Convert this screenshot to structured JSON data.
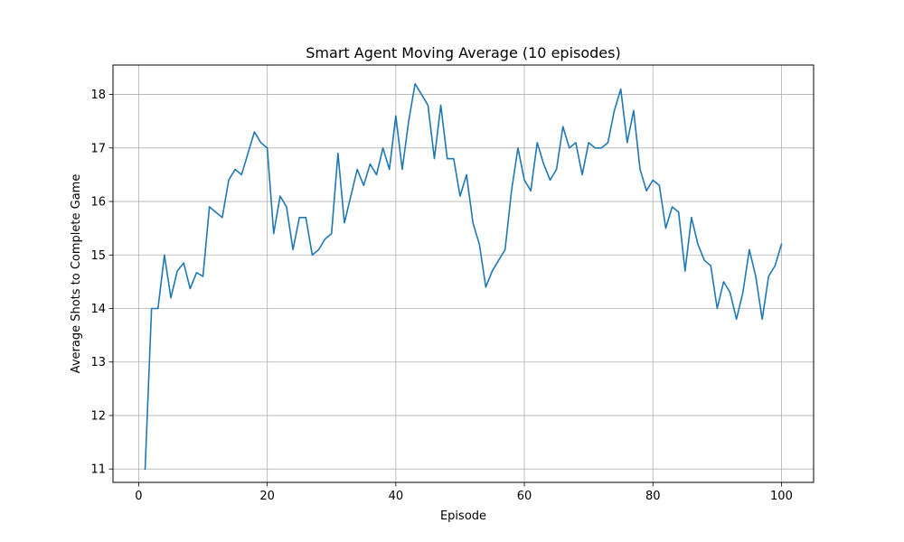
{
  "chart_data": {
    "type": "line",
    "title": "Smart Agent Moving Average (10 episodes)",
    "xlabel": "Episode",
    "ylabel": "Average Shots to Complete Game",
    "xlim": [
      -4,
      105
    ],
    "ylim": [
      10.75,
      18.55
    ],
    "xticks": [
      0,
      20,
      40,
      60,
      80,
      100
    ],
    "yticks": [
      11,
      12,
      13,
      14,
      15,
      16,
      17,
      18
    ],
    "grid": true,
    "series": [
      {
        "color": "#1f77b4",
        "x": [
          1,
          2,
          3,
          4,
          5,
          6,
          7,
          8,
          9,
          10,
          11,
          12,
          13,
          14,
          15,
          16,
          17,
          18,
          19,
          20,
          21,
          22,
          23,
          24,
          25,
          26,
          27,
          28,
          29,
          30,
          31,
          32,
          33,
          34,
          35,
          36,
          37,
          38,
          39,
          40,
          41,
          42,
          43,
          44,
          45,
          46,
          47,
          48,
          49,
          50,
          51,
          52,
          53,
          54,
          55,
          56,
          57,
          58,
          59,
          60,
          61,
          62,
          63,
          64,
          65,
          66,
          67,
          68,
          69,
          70,
          71,
          72,
          73,
          74,
          75,
          76,
          77,
          78,
          79,
          80,
          81,
          82,
          83,
          84,
          85,
          86,
          87,
          88,
          89,
          90,
          91,
          92,
          93,
          94,
          95,
          96,
          97,
          98,
          99,
          100
        ],
        "y": [
          11.0,
          14.0,
          14.0,
          15.0,
          14.2,
          14.7,
          14.85,
          14.37,
          14.67,
          14.6,
          15.9,
          15.8,
          15.7,
          16.4,
          16.6,
          16.5,
          16.9,
          17.3,
          17.1,
          17.0,
          15.4,
          16.1,
          15.9,
          15.1,
          15.7,
          15.7,
          15.0,
          15.1,
          15.3,
          15.4,
          16.9,
          15.6,
          16.1,
          16.6,
          16.3,
          16.7,
          16.5,
          17.0,
          16.6,
          17.6,
          16.6,
          17.5,
          18.2,
          18.0,
          17.8,
          16.8,
          17.8,
          16.8,
          16.8,
          16.1,
          16.5,
          15.6,
          15.2,
          14.4,
          14.7,
          14.9,
          15.1,
          16.2,
          17.0,
          16.4,
          16.2,
          17.1,
          16.7,
          16.4,
          16.6,
          17.4,
          17.0,
          17.1,
          16.5,
          17.1,
          17.0,
          17.0,
          17.1,
          17.7,
          18.1,
          17.1,
          17.7,
          16.6,
          16.2,
          16.4,
          16.3,
          15.5,
          15.9,
          15.8,
          14.7,
          15.7,
          15.2,
          14.9,
          14.8,
          14.0,
          14.5,
          14.3,
          13.8,
          14.3,
          15.1,
          14.6,
          13.8,
          14.6,
          14.8,
          15.2
        ]
      }
    ]
  }
}
